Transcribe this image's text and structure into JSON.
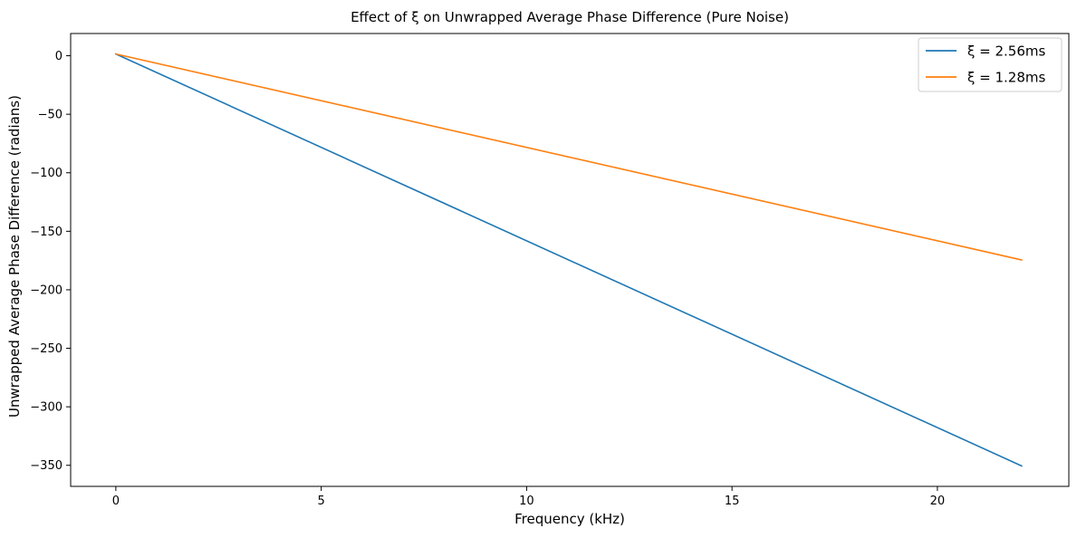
{
  "chart_data": {
    "type": "line",
    "title": "Effect of ξ on Unwrapped Average Phase Difference (Pure Noise)",
    "xlabel": "Frequency (kHz)",
    "ylabel": "Unwrapped Average Phase Difference (radians)",
    "xlim": [
      -1.1,
      23.2
    ],
    "ylim": [
      -368,
      19
    ],
    "xticks": [
      0,
      5,
      10,
      15,
      20
    ],
    "yticks": [
      0,
      -50,
      -100,
      -150,
      -200,
      -250,
      -300,
      -350
    ],
    "xtick_labels": [
      "0",
      "5",
      "10",
      "15",
      "20"
    ],
    "ytick_labels": [
      "0",
      "−50",
      "−100",
      "−150",
      "−200",
      "−250",
      "−300",
      "−350"
    ],
    "grid": false,
    "legend_position": "top-right",
    "series": [
      {
        "name": "ξ = 2.56ms",
        "color": "#1f77b4",
        "x": [
          0,
          22.05
        ],
        "y": [
          1.5,
          -350.5
        ]
      },
      {
        "name": "ξ = 1.28ms",
        "color": "#ff7f0e",
        "x": [
          0,
          22.05
        ],
        "y": [
          1.5,
          -174.5
        ]
      }
    ]
  }
}
